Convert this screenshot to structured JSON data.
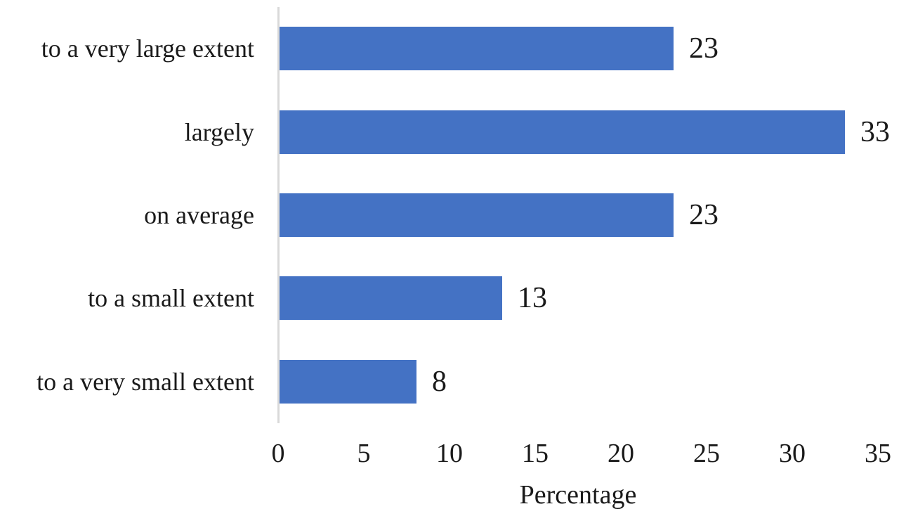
{
  "chart_data": {
    "type": "bar",
    "orientation": "horizontal",
    "title": "",
    "xlabel": "Percentage",
    "ylabel": "",
    "categories": [
      "to a very large extent",
      "largely",
      "on average",
      "to a small extent",
      "to a very small extent"
    ],
    "values": [
      23,
      33,
      23,
      13,
      8
    ],
    "data_labels": [
      "23",
      "33",
      "23",
      "13",
      "8"
    ],
    "xlim": [
      0,
      35
    ],
    "xticks": [
      0,
      5,
      10,
      15,
      20,
      25,
      30,
      35
    ],
    "xtick_labels": [
      "0",
      "5",
      "10",
      "15",
      "20",
      "25",
      "30",
      "35"
    ],
    "grid": false,
    "legend": false,
    "bar_color": "#4472C4",
    "axis_line_color": "#D9D9D9",
    "text_color": "#1a1a1a"
  }
}
